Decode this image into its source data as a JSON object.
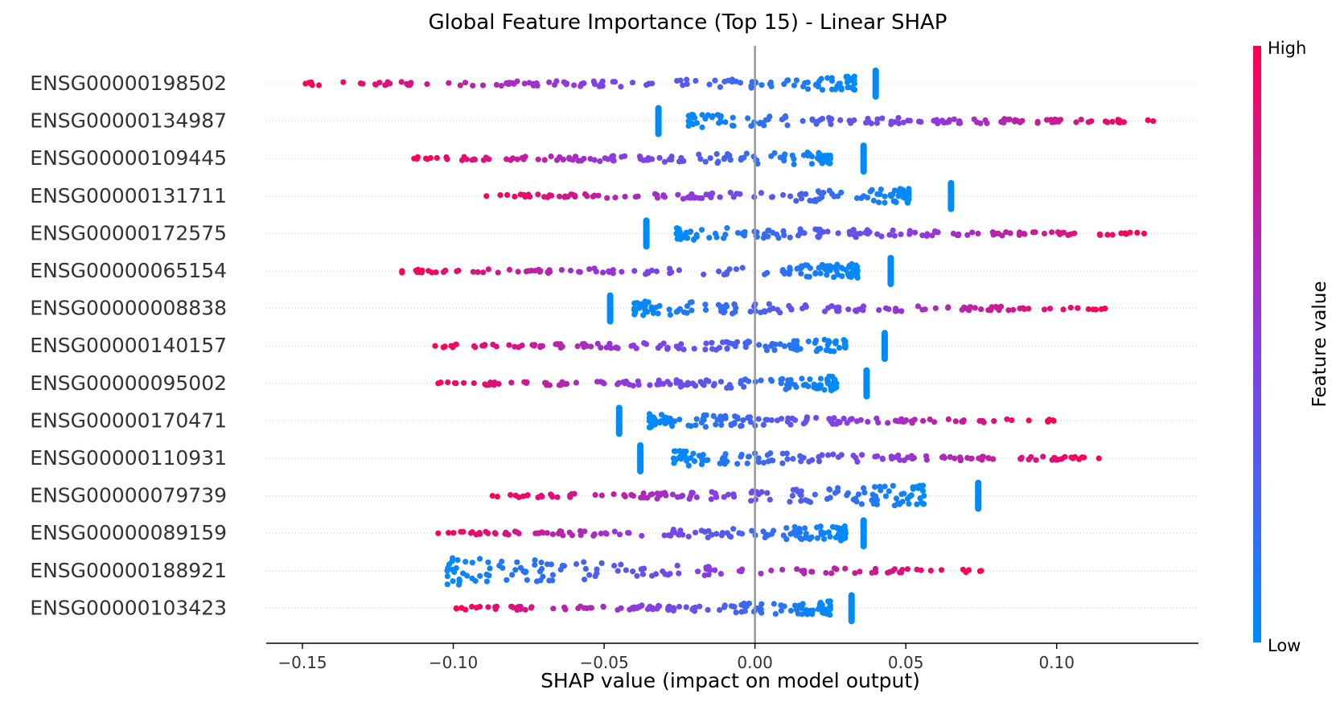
{
  "chart_data": {
    "type": "scatter",
    "title": "Global Feature Importance (Top 15) - Linear SHAP",
    "xlabel": "SHAP value (impact on model output)",
    "xlim": [
      -0.162,
      0.147
    ],
    "xticks": [
      -0.15,
      -0.1,
      -0.05,
      0.0,
      0.05,
      0.1
    ],
    "xtick_labels": [
      "−0.15",
      "−0.10",
      "−0.05",
      "0.00",
      "0.05",
      "0.10"
    ],
    "colorbar": {
      "label": "Feature value",
      "high": "High",
      "low": "Low",
      "high_color": "#ff0052",
      "low_color": "#008bfb"
    },
    "grid": false,
    "features": [
      {
        "name": "ENSG00000198502",
        "min": -0.149,
        "max": 0.033,
        "dir": -1,
        "marker": 0.04,
        "width": 1.0
      },
      {
        "name": "ENSG00000134987",
        "min": -0.022,
        "max": 0.132,
        "dir": 1,
        "marker": -0.032,
        "width": 1.0
      },
      {
        "name": "ENSG00000109445",
        "min": -0.113,
        "max": 0.025,
        "dir": -1,
        "marker": 0.036,
        "width": 1.0
      },
      {
        "name": "ENSG00000131711",
        "min": -0.089,
        "max": 0.051,
        "dir": -1,
        "marker": 0.065,
        "width": 1.1
      },
      {
        "name": "ENSG00000172575",
        "min": -0.026,
        "max": 0.129,
        "dir": 1,
        "marker": -0.036,
        "width": 1.0
      },
      {
        "name": "ENSG00000065154",
        "min": -0.117,
        "max": 0.034,
        "dir": -1,
        "marker": 0.045,
        "width": 1.0
      },
      {
        "name": "ENSG00000008838",
        "min": -0.04,
        "max": 0.116,
        "dir": 1,
        "marker": -0.048,
        "width": 1.1
      },
      {
        "name": "ENSG00000140157",
        "min": -0.106,
        "max": 0.03,
        "dir": -1,
        "marker": 0.043,
        "width": 1.0
      },
      {
        "name": "ENSG00000095002",
        "min": -0.105,
        "max": 0.027,
        "dir": -1,
        "marker": 0.037,
        "width": 1.0
      },
      {
        "name": "ENSG00000170471",
        "min": -0.035,
        "max": 0.099,
        "dir": 1,
        "marker": -0.045,
        "width": 1.1
      },
      {
        "name": "ENSG00000110931",
        "min": -0.027,
        "max": 0.114,
        "dir": 1,
        "marker": -0.038,
        "width": 1.1
      },
      {
        "name": "ENSG00000079739",
        "min": -0.087,
        "max": 0.056,
        "dir": -1,
        "marker": 0.074,
        "width": 1.8
      },
      {
        "name": "ENSG00000089159",
        "min": -0.105,
        "max": 0.03,
        "dir": -1,
        "marker": 0.036,
        "width": 1.1
      },
      {
        "name": "ENSG00000188921",
        "min": -0.102,
        "max": 0.075,
        "dir": 1,
        "marker": null,
        "width": 2.4
      },
      {
        "name": "ENSG00000103423",
        "min": -0.099,
        "max": 0.025,
        "dir": -1,
        "marker": 0.032,
        "width": 1.0
      }
    ]
  }
}
